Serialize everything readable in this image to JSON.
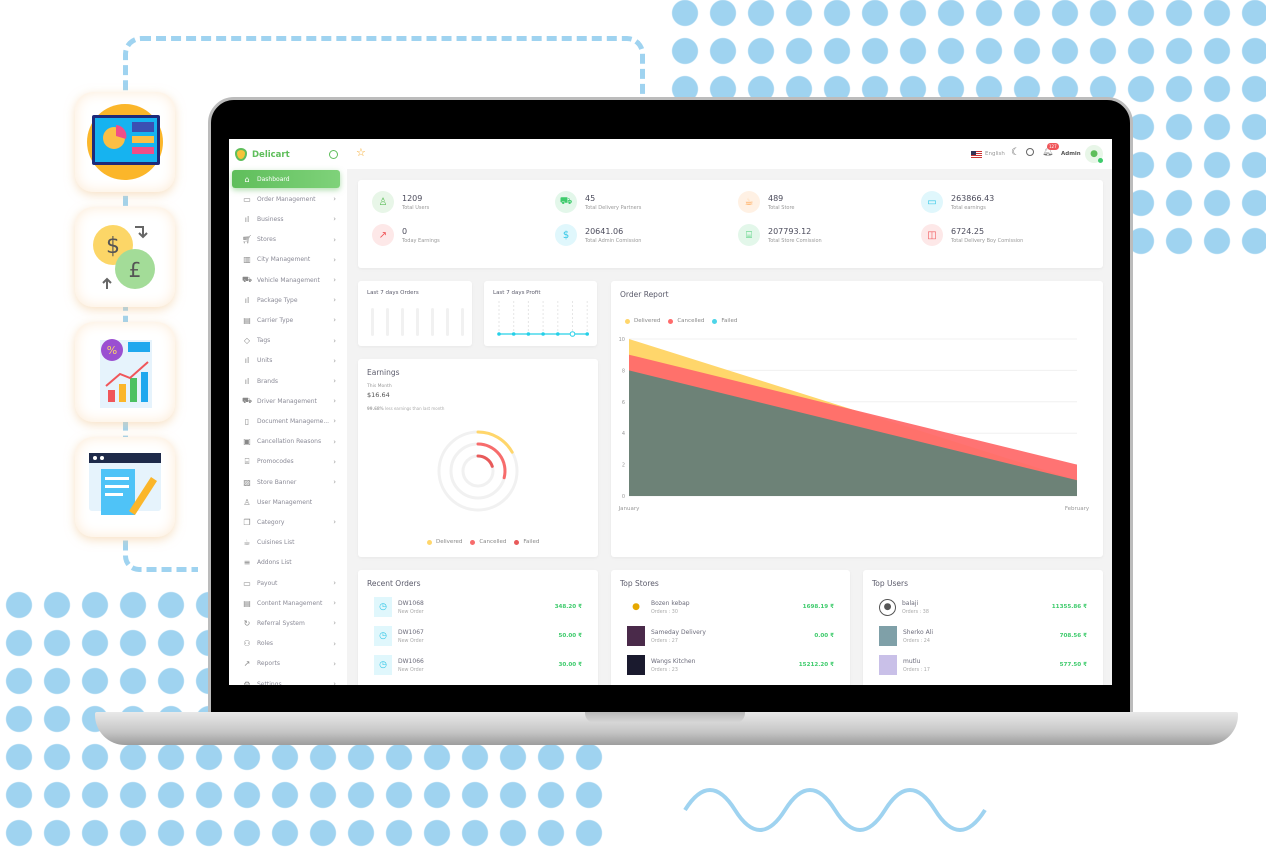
{
  "brand": {
    "name": "Delicart",
    "accent": "#5fbe5b"
  },
  "feature_icons": [
    "dashboard-chart-icon",
    "currency-exchange-icon",
    "analytics-report-icon",
    "document-edit-icon"
  ],
  "header": {
    "language": "English",
    "notification_count": "127",
    "user": "Admin"
  },
  "sidebar": {
    "items": [
      {
        "label": "Dashboard",
        "icon": "home-icon",
        "active": true,
        "chevron": false
      },
      {
        "label": "Order Management",
        "icon": "archive-icon",
        "chevron": true
      },
      {
        "label": "Business",
        "icon": "bar-chart-icon",
        "chevron": true
      },
      {
        "label": "Stores",
        "icon": "cart-icon",
        "chevron": true
      },
      {
        "label": "City Management",
        "icon": "map-icon",
        "chevron": true
      },
      {
        "label": "Vehicle Management",
        "icon": "truck-icon",
        "chevron": true
      },
      {
        "label": "Package Type",
        "icon": "bar-chart-icon",
        "chevron": true
      },
      {
        "label": "Carrier Type",
        "icon": "file-icon",
        "chevron": true
      },
      {
        "label": "Tags",
        "icon": "tag-icon",
        "chevron": true
      },
      {
        "label": "Units",
        "icon": "bar-chart-icon",
        "chevron": true
      },
      {
        "label": "Brands",
        "icon": "bar-chart-icon",
        "chevron": true
      },
      {
        "label": "Driver Management",
        "icon": "truck-icon",
        "chevron": true
      },
      {
        "label": "Document Manageme...",
        "icon": "book-icon",
        "chevron": true
      },
      {
        "label": "Cancellation Reasons",
        "icon": "folder-icon",
        "chevron": true
      },
      {
        "label": "Promocodes",
        "icon": "gift-icon",
        "chevron": true
      },
      {
        "label": "Store Banner",
        "icon": "image-icon",
        "chevron": true
      },
      {
        "label": "User Management",
        "icon": "user-icon",
        "chevron": false
      },
      {
        "label": "Category",
        "icon": "copy-icon",
        "chevron": true
      },
      {
        "label": "Cuisines List",
        "icon": "coffee-icon",
        "chevron": false
      },
      {
        "label": "Addons List",
        "icon": "list-icon",
        "chevron": false
      },
      {
        "label": "Payout",
        "icon": "credit-card-icon",
        "chevron": true
      },
      {
        "label": "Content Management",
        "icon": "file-icon",
        "chevron": true
      },
      {
        "label": "Referral System",
        "icon": "refresh-icon",
        "chevron": true
      },
      {
        "label": "Roles",
        "icon": "users-icon",
        "chevron": true
      },
      {
        "label": "Reports",
        "icon": "trending-up-icon",
        "chevron": true
      },
      {
        "label": "Settings",
        "icon": "gear-icon",
        "chevron": true
      }
    ]
  },
  "stats": [
    {
      "value": "1209",
      "label": "Total Users",
      "icon": "user-icon",
      "color": "#5fbe5b",
      "bg": "#e8f6e8"
    },
    {
      "value": "45",
      "label": "Total Delivery Partners",
      "icon": "truck-icon",
      "color": "#3ecb6c",
      "bg": "#e3f7ea"
    },
    {
      "value": "489",
      "label": "Total Store",
      "icon": "coffee-icon",
      "color": "#ffa24a",
      "bg": "#fff1e4"
    },
    {
      "value": "263866.43",
      "label": "Total earnings",
      "icon": "credit-card-icon",
      "color": "#2fc6e6",
      "bg": "#e0f7fc"
    },
    {
      "value": "0",
      "label": "Today Earnings",
      "icon": "trending-up-icon",
      "color": "#f0565a",
      "bg": "#fde8e8"
    },
    {
      "value": "20641.06",
      "label": "Total Admin Comission",
      "icon": "dollar-icon",
      "color": "#2fc6e6",
      "bg": "#e0f7fc"
    },
    {
      "value": "207793.12",
      "label": "Total Store Comission",
      "icon": "gift-icon",
      "color": "#3ecb6c",
      "bg": "#e3f7ea"
    },
    {
      "value": "6724.25",
      "label": "Total Delivery Boy Comission",
      "icon": "shopping-bag-icon",
      "color": "#f0565a",
      "bg": "#fde8e8"
    }
  ],
  "orders_card": {
    "title": "Last 7 days Orders",
    "values": [
      0,
      0,
      0,
      0,
      0,
      0,
      0
    ]
  },
  "profit_card": {
    "title": "Last 7 days Profit",
    "values": [
      0,
      0,
      0,
      0,
      0,
      0,
      0
    ],
    "color": "#26d0e8"
  },
  "earnings": {
    "title": "Earnings",
    "period": "This Month",
    "amount": "$16.64",
    "compare_pct": "99.68%",
    "compare_text": "less earnings than last month",
    "rings": [
      {
        "name": "Delivered",
        "fraction": 0.17,
        "color": "#ffd66b"
      },
      {
        "name": "Cancelled",
        "fraction": 0.29,
        "color": "#f76c6c"
      },
      {
        "name": "Failed",
        "fraction": 0.2,
        "color": "#e85a5a"
      }
    ]
  },
  "chart_data": {
    "type": "area",
    "title": "Order Report",
    "categories": [
      "January",
      "February"
    ],
    "ylim": [
      0,
      10
    ],
    "yticks": [
      "0",
      "2",
      "4",
      "6",
      "8",
      "10"
    ],
    "grid": true,
    "legend": "top-left",
    "series": [
      {
        "name": "Delivered",
        "values": [
          10,
          1
        ],
        "color": "#ffd66b"
      },
      {
        "name": "Cancelled",
        "values": [
          9,
          2
        ],
        "color": "#ff6b6b"
      },
      {
        "name": "Failed",
        "values": [
          8,
          1
        ],
        "color": "#4dd4e8"
      }
    ]
  },
  "recent_orders": {
    "title": "Recent Orders",
    "items": [
      {
        "id": "DW1068",
        "status": "New Order",
        "amount": "348.20 ₹"
      },
      {
        "id": "DW1067",
        "status": "New Order",
        "amount": "50.00 ₹"
      },
      {
        "id": "DW1066",
        "status": "New Order",
        "amount": "30.00 ₹"
      }
    ]
  },
  "top_stores": {
    "title": "Top Stores",
    "items": [
      {
        "name": "Bozen kebap",
        "orders": "Orders : 30",
        "amount": "1698.19 ₹"
      },
      {
        "name": "Sameday Delivery",
        "orders": "Orders : 27",
        "amount": "0.00 ₹"
      },
      {
        "name": "Wangs Kitchen",
        "orders": "Orders : 23",
        "amount": "15212.20 ₹"
      }
    ]
  },
  "top_users": {
    "title": "Top Users",
    "items": [
      {
        "name": "balaji",
        "orders": "Orders : 38",
        "amount": "11355.86 ₹"
      },
      {
        "name": "Sherko Ali",
        "orders": "Orders : 24",
        "amount": "708.56 ₹"
      },
      {
        "name": "mutlu",
        "orders": "Orders : 17",
        "amount": "577.50 ₹"
      }
    ]
  }
}
